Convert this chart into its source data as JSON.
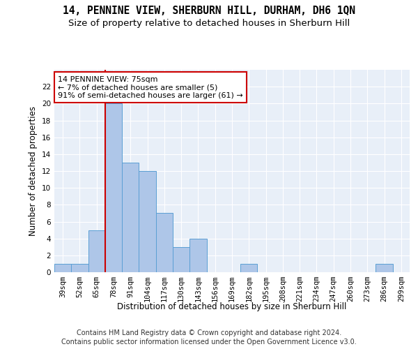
{
  "title1": "14, PENNINE VIEW, SHERBURN HILL, DURHAM, DH6 1QN",
  "title2": "Size of property relative to detached houses in Sherburn Hill",
  "xlabel": "Distribution of detached houses by size in Sherburn Hill",
  "ylabel": "Number of detached properties",
  "categories": [
    "39sqm",
    "52sqm",
    "65sqm",
    "78sqm",
    "91sqm",
    "104sqm",
    "117sqm",
    "130sqm",
    "143sqm",
    "156sqm",
    "169sqm",
    "182sqm",
    "195sqm",
    "208sqm",
    "221sqm",
    "234sqm",
    "247sqm",
    "260sqm",
    "273sqm",
    "286sqm",
    "299sqm"
  ],
  "values": [
    1,
    1,
    5,
    20,
    13,
    12,
    7,
    3,
    4,
    0,
    0,
    1,
    0,
    0,
    0,
    0,
    0,
    0,
    0,
    1,
    0
  ],
  "bar_color": "#aec6e8",
  "bar_edge_color": "#5a9fd4",
  "vline_color": "#cc0000",
  "vline_x_idx": 3,
  "annotation_text": "14 PENNINE VIEW: 75sqm\n← 7% of detached houses are smaller (5)\n91% of semi-detached houses are larger (61) →",
  "annotation_box_color": "#ffffff",
  "annotation_box_edge_color": "#cc0000",
  "ylim": [
    0,
    24
  ],
  "yticks": [
    0,
    2,
    4,
    6,
    8,
    10,
    12,
    14,
    16,
    18,
    20,
    22
  ],
  "background_color": "#e8eff8",
  "footnote1": "Contains HM Land Registry data © Crown copyright and database right 2024.",
  "footnote2": "Contains public sector information licensed under the Open Government Licence v3.0.",
  "title1_fontsize": 10.5,
  "title2_fontsize": 9.5,
  "xlabel_fontsize": 8.5,
  "ylabel_fontsize": 8.5,
  "tick_fontsize": 7.5,
  "annotation_fontsize": 8,
  "footnote_fontsize": 7
}
